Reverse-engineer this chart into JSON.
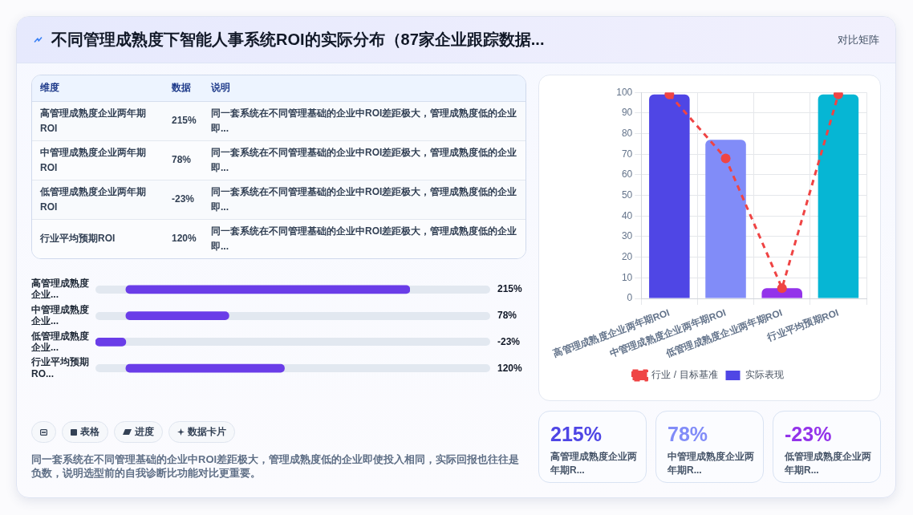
{
  "chart_data": [
    {
      "type": "other",
      "title": "不同管理成熟度下智能人事系统ROI的实际分布（87家企业跟踪数据...",
      "annotations": [
        "对比矩阵"
      ]
    },
    {
      "type": "other",
      "annotations": [
        "维度",
        "数据",
        "说明",
        "高管理成熟度企业两年期ROI",
        "215%",
        "同一套系统在不同管理基础的企业中ROI差距极大，管理成熟度低的企业即...",
        "中管理成熟度企业两年期ROI",
        "78%",
        "同一套系统在不同管理基础的企业中ROI差距极大，管理成熟度低的企业即...",
        "低管理成熟度企业两年期ROI",
        "-23%",
        "同一套系统在不同管理基础的企业中ROI差距极大，管理成熟度低的企业即...",
        "行业平均预期ROI",
        "120%",
        "同一套系统在不同管理基础的企业中ROI差距极大，管理成熟度低的企业即..."
      ]
    },
    {
      "type": "bar",
      "orientation": "horizontal",
      "categories": [
        "高管理成熟度企业...",
        "中管理成熟度企业...",
        "低管理成熟度企业...",
        "行业平均预期RO..."
      ],
      "values": [
        215,
        78,
        -23,
        120
      ],
      "value_labels": [
        "215%",
        "78%",
        "-23%",
        "120%"
      ],
      "color": "#6a3de8",
      "tick_labels": "y"
    },
    {
      "type": "other",
      "annotations": [
        "表格",
        "进度",
        "数据卡片",
        "同一套系统在不同管理基础的企业中ROI差距极大，管理成熟度低的企业即使投入相同，实际回报也往往是负数，说明选型前的自我诊断比功能对比更重要。"
      ]
    },
    {
      "type": "bar",
      "categories": [
        "高管理成熟度企业两年期ROI",
        "中管理成熟度企业两年期ROI",
        "低管理成熟度企业两年期ROI",
        "行业平均预期ROI"
      ],
      "series": [
        {
          "name": "行业 / 目标基准",
          "type": "line",
          "color": "#ef4444",
          "values": [
            99,
            68,
            5,
            99
          ]
        },
        {
          "name": "实际表现",
          "colors": [
            "#4f46e5",
            "#818cf8",
            "#9333ea",
            "#06b6d4"
          ],
          "values": [
            99,
            77,
            5,
            99
          ]
        }
      ],
      "ylim": [
        0,
        100
      ],
      "yticks": [
        0,
        10,
        20,
        30,
        40,
        50,
        60,
        70,
        80,
        90,
        100
      ],
      "grid": true,
      "legend": "bottom",
      "marker": "circle",
      "line_style": "dashed"
    },
    {
      "type": "other",
      "annotations": [
        "215%",
        "高管理成熟度企业两年期R...",
        "78%",
        "中管理成熟度企业两年期R...",
        "-23%",
        "低管理成熟度企业两年期R..."
      ]
    }
  ]
}
